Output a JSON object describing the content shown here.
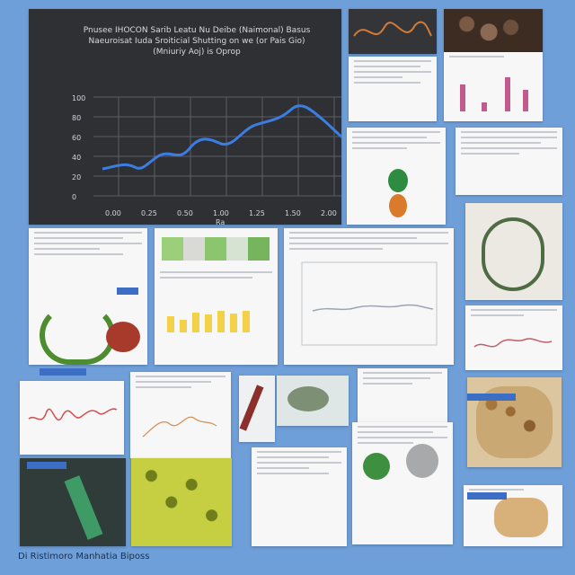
{
  "collage": {
    "caption": "Di Ristimoro Manhatia Biposs",
    "main_chart_title": "Pnusee IHOCON Sarib Leatu Nu Deibe (Naimonal) Basus Naeuroisat Iuda Sroiticial Shutting on we (or Pais Gio) (Mniuriy Aoj) is Oprop",
    "main_chart_xlabel": "Ra",
    "main_chart_yticks": [
      "100",
      "80",
      "60",
      "40",
      "20",
      "0"
    ],
    "main_chart_xticks": [
      "0.00",
      "0.25",
      "0.50",
      "1.00",
      "1.25",
      "1.50",
      "2.00"
    ]
  }
}
